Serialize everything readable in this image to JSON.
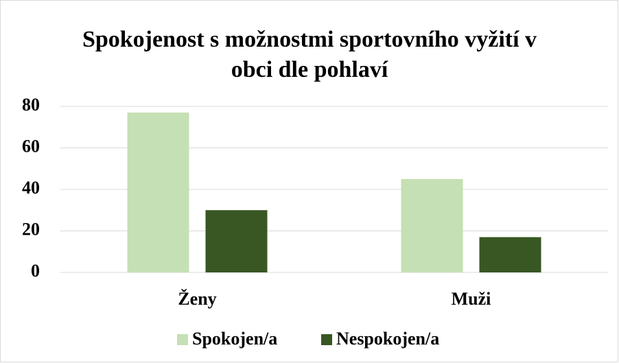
{
  "chart_data": {
    "type": "bar",
    "title": "Spokojenost s možnostmi sportovního vyžití v obci dle pohlaví",
    "categories": [
      "Ženy",
      "Muži"
    ],
    "series": [
      {
        "name": "Spokojen/a",
        "color": "#c5e0b4",
        "values": [
          77,
          45
        ]
      },
      {
        "name": "Nespokojen/a",
        "color": "#385723",
        "values": [
          30,
          17
        ]
      }
    ],
    "ylim": [
      0,
      80
    ],
    "yticks": [
      0,
      20,
      40,
      60,
      80
    ],
    "grid": true,
    "legend": "bottom"
  }
}
